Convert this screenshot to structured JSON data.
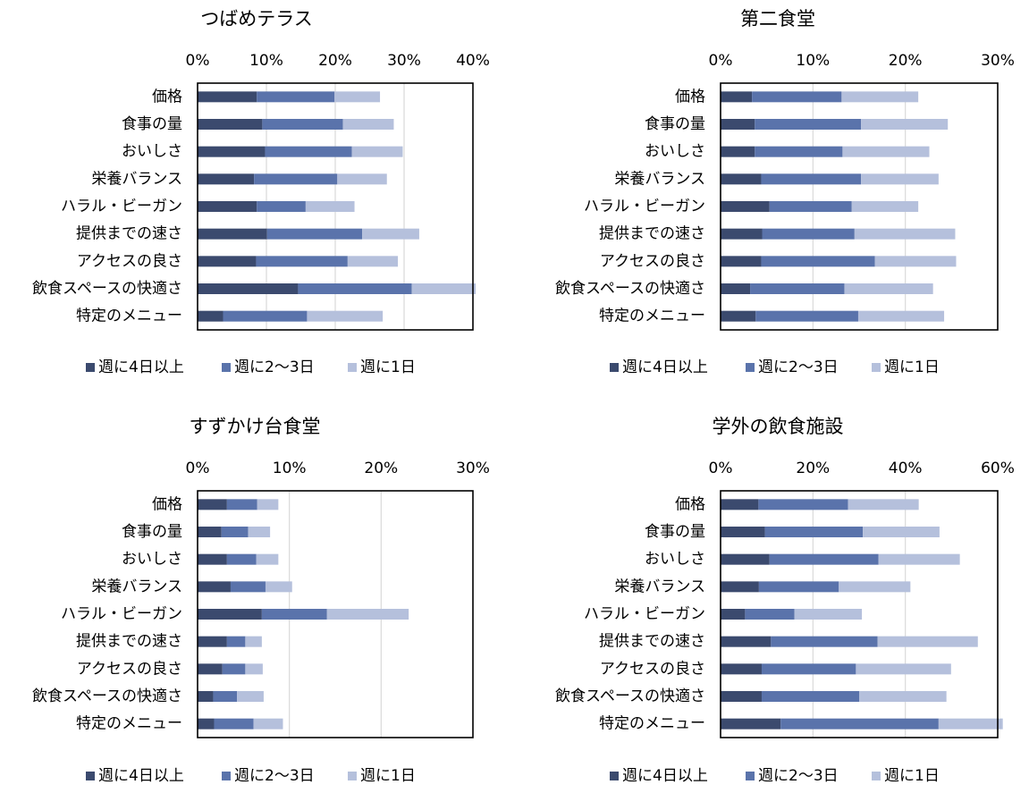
{
  "colors": {
    "dark": "#3b4a6e",
    "mid": "#5a73ab",
    "light": "#b5c0dc",
    "grid": "#d9d9d9",
    "frame": "#000000"
  },
  "legend": [
    "週に4日以上",
    "週に2～3日",
    "週に1日"
  ],
  "chart_data": [
    {
      "type": "bar",
      "orientation": "horizontal",
      "stacked": true,
      "title": "つばめテラス",
      "xlim": [
        0,
        40
      ],
      "x_ticks": [
        "0%",
        "10%",
        "20%",
        "30%",
        "40%"
      ],
      "grid": true,
      "legend_position": "bottom",
      "categories": [
        "価格",
        "食事の量",
        "おいしさ",
        "栄養バランス",
        "ハラル・ビーガン",
        "提供までの速さ",
        "アクセスの良さ",
        "飲食スペースの快適さ",
        "特定のメニュー"
      ],
      "series": [
        {
          "name": "週に4日以上",
          "values": [
            8.6,
            9.4,
            9.8,
            8.2,
            8.6,
            10.1,
            8.5,
            14.6,
            3.7
          ]
        },
        {
          "name": "週に2～3日",
          "values": [
            11.3,
            11.7,
            12.6,
            12.1,
            7.1,
            13.8,
            13.3,
            16.5,
            12.2
          ]
        },
        {
          "name": "週に1日",
          "values": [
            6.6,
            7.4,
            7.4,
            7.2,
            7.1,
            8.3,
            7.3,
            9.3,
            11.0
          ]
        }
      ]
    },
    {
      "type": "bar",
      "orientation": "horizontal",
      "stacked": true,
      "title": "第二食堂",
      "xlim": [
        0,
        30
      ],
      "x_ticks": [
        "0%",
        "10%",
        "20%",
        "30%"
      ],
      "grid": true,
      "legend_position": "bottom",
      "categories": [
        "価格",
        "食事の量",
        "おいしさ",
        "栄養バランス",
        "ハラル・ビーガン",
        "提供までの速さ",
        "アクセスの良さ",
        "飲食スペースの快適さ",
        "特定のメニュー"
      ],
      "series": [
        {
          "name": "週に4日以上",
          "values": [
            3.4,
            3.7,
            3.7,
            4.4,
            5.3,
            4.5,
            4.4,
            3.2,
            3.8
          ]
        },
        {
          "name": "週に2～3日",
          "values": [
            9.7,
            11.5,
            9.5,
            10.8,
            8.9,
            10.0,
            12.3,
            10.2,
            11.1
          ]
        },
        {
          "name": "週に1日",
          "values": [
            8.3,
            9.4,
            9.4,
            8.4,
            7.2,
            10.9,
            8.8,
            9.6,
            9.3
          ]
        }
      ]
    },
    {
      "type": "bar",
      "orientation": "horizontal",
      "stacked": true,
      "title": "すずかけ台食堂",
      "xlim": [
        0,
        30
      ],
      "x_ticks": [
        "0%",
        "10%",
        "20%",
        "30%"
      ],
      "grid": true,
      "legend_position": "bottom",
      "categories": [
        "価格",
        "食事の量",
        "おいしさ",
        "栄養バランス",
        "ハラル・ビーガン",
        "提供までの速さ",
        "アクセスの良さ",
        "飲食スペースの快適さ",
        "特定のメニュー"
      ],
      "series": [
        {
          "name": "週に4日以上",
          "values": [
            3.2,
            2.6,
            3.2,
            3.6,
            7.0,
            3.2,
            2.7,
            1.7,
            1.8
          ]
        },
        {
          "name": "週に2～3日",
          "values": [
            3.3,
            2.9,
            3.2,
            3.8,
            7.1,
            2.0,
            2.5,
            2.6,
            4.3
          ]
        },
        {
          "name": "週に1日",
          "values": [
            2.3,
            2.4,
            2.4,
            2.9,
            8.9,
            1.8,
            1.9,
            2.9,
            3.2
          ]
        }
      ]
    },
    {
      "type": "bar",
      "orientation": "horizontal",
      "stacked": true,
      "title": "学外の飲食施設",
      "xlim": [
        0,
        60
      ],
      "x_ticks": [
        "0%",
        "20%",
        "40%",
        "60%"
      ],
      "grid": true,
      "legend_position": "bottom",
      "categories": [
        "価格",
        "食事の量",
        "おいしさ",
        "栄養バランス",
        "ハラル・ビーガン",
        "提供までの速さ",
        "アクセスの良さ",
        "飲食スペースの快適さ",
        "特定のメニュー"
      ],
      "series": [
        {
          "name": "週に4日以上",
          "values": [
            8.2,
            9.6,
            10.6,
            8.3,
            5.3,
            10.9,
            8.9,
            8.9,
            13.0
          ]
        },
        {
          "name": "週に2～3日",
          "values": [
            19.4,
            21.2,
            23.6,
            17.3,
            10.7,
            23.1,
            20.4,
            21.1,
            34.2
          ]
        },
        {
          "name": "週に1日",
          "values": [
            15.3,
            16.6,
            17.6,
            15.5,
            14.6,
            21.7,
            20.6,
            18.9,
            13.9
          ]
        }
      ]
    }
  ]
}
